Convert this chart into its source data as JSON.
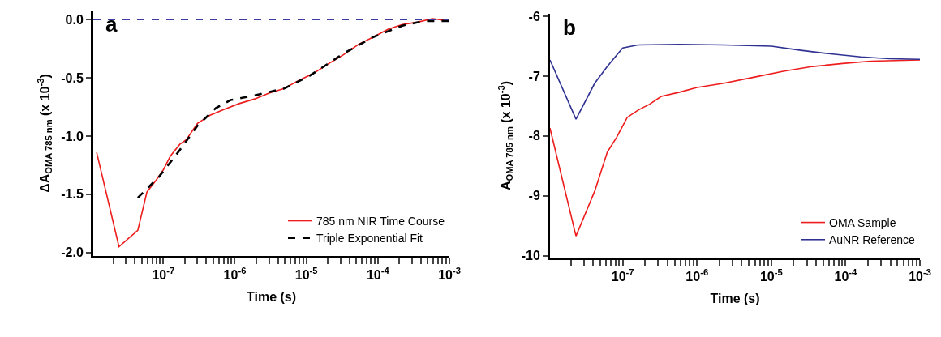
{
  "chart_data": [
    {
      "type": "line",
      "xlabel": "Time (s)",
      "ylabel": "ΔA$_{OMA 785 nm}$ (x 10$^{-3}$)",
      "annotations": [
        "a"
      ],
      "log": "x",
      "grid": false,
      "legend": "bottom right",
      "marker": "none",
      "xlim": [
        1.05e-08,
        0.001
      ],
      "ylim": [
        -2.03,
        0.08
      ],
      "xticks": [
        {
          "value": 2e-08,
          "label": null
        },
        {
          "value": 3e-08,
          "label": null
        },
        {
          "value": 4e-08,
          "label": null
        },
        {
          "value": 5e-08,
          "label": null
        },
        {
          "value": 6e-08,
          "label": null
        },
        {
          "value": 7e-08,
          "label": null
        },
        {
          "value": 8e-08,
          "label": null
        },
        {
          "value": 9e-08,
          "label": null
        },
        {
          "value": 1e-07,
          "label": "10$^{-7}$"
        },
        {
          "value": 2e-07,
          "label": null
        },
        {
          "value": 3e-07,
          "label": null
        },
        {
          "value": 4e-07,
          "label": null
        },
        {
          "value": 5e-07,
          "label": null
        },
        {
          "value": 6e-07,
          "label": null
        },
        {
          "value": 7e-07,
          "label": null
        },
        {
          "value": 8e-07,
          "label": null
        },
        {
          "value": 9e-07,
          "label": null
        },
        {
          "value": 1e-06,
          "label": "10$^{-6}$"
        },
        {
          "value": 2e-06,
          "label": null
        },
        {
          "value": 3e-06,
          "label": null
        },
        {
          "value": 4e-06,
          "label": null
        },
        {
          "value": 5e-06,
          "label": null
        },
        {
          "value": 6e-06,
          "label": null
        },
        {
          "value": 7e-06,
          "label": null
        },
        {
          "value": 8e-06,
          "label": null
        },
        {
          "value": 9e-06,
          "label": null
        },
        {
          "value": 1e-05,
          "label": "10$^{-5}$"
        },
        {
          "value": 2e-05,
          "label": null
        },
        {
          "value": 3e-05,
          "label": null
        },
        {
          "value": 4e-05,
          "label": null
        },
        {
          "value": 5e-05,
          "label": null
        },
        {
          "value": 6e-05,
          "label": null
        },
        {
          "value": 7e-05,
          "label": null
        },
        {
          "value": 8e-05,
          "label": null
        },
        {
          "value": 9e-05,
          "label": null
        },
        {
          "value": 0.0001,
          "label": "10$^{-4}$"
        },
        {
          "value": 0.0002,
          "label": null
        },
        {
          "value": 0.0003,
          "label": null
        },
        {
          "value": 0.0004,
          "label": null
        },
        {
          "value": 0.0005,
          "label": null
        },
        {
          "value": 0.0006,
          "label": null
        },
        {
          "value": 0.0007,
          "label": null
        },
        {
          "value": 0.0008,
          "label": null
        },
        {
          "value": 0.0009,
          "label": null
        },
        {
          "value": 0.001,
          "label": "10$^{-3}$"
        }
      ],
      "yticks": [
        {
          "value": 0,
          "label": "0.0"
        },
        -0.5,
        {
          "value": -1,
          "label": "-1.0"
        },
        -1.5,
        {
          "value": -2,
          "label": "-2.0"
        }
      ],
      "ref_lines": [
        {
          "axis": "y",
          "value": 0,
          "label": null,
          "color": "#3a3aa0",
          "line_style": "dashed"
        }
      ],
      "series": [
        {
          "name": "785 nm NIR Time Course",
          "color": "#ee1c1c",
          "line_style": "solid",
          "x": [
            1.17e-08,
            2.4e-08,
            4.4e-08,
            5.9e-08,
            7.9e-08,
            1e-07,
            1.26e-07,
            1.7e-07,
            2.1e-07,
            3e-07,
            4.5e-07,
            7.1e-07,
            1.15e-06,
            1.9e-06,
            3e-06,
            4.9e-06,
            7.9e-06,
            1.26e-05,
            2e-05,
            3.3e-05,
            5.4e-05,
            8.5e-05,
            0.00014,
            0.00022,
            0.00036,
            0.00058,
            0.001
          ],
          "values": [
            -1.14,
            -1.95,
            -1.81,
            -1.48,
            -1.38,
            -1.29,
            -1.17,
            -1.07,
            -1.03,
            -0.89,
            -0.82,
            -0.77,
            -0.72,
            -0.68,
            -0.63,
            -0.59,
            -0.52,
            -0.46,
            -0.38,
            -0.3,
            -0.21,
            -0.15,
            -0.08,
            -0.04,
            -0.02,
            0.01,
            -0.01
          ]
        },
        {
          "name": "Triple Exponential Fit",
          "color": "#000000",
          "line_style": "dashed",
          "x": [
            4.4e-08,
            8.7e-08,
            1.7e-07,
            3e-07,
            5.4e-07,
            8.7e-07,
            1.9e-06,
            4.9e-06,
            1.12e-05,
            3.3e-05,
            8.5e-05,
            0.00022,
            0.00044,
            0.001
          ],
          "values": [
            -1.53,
            -1.35,
            -1.12,
            -0.91,
            -0.76,
            -0.69,
            -0.65,
            -0.59,
            -0.48,
            -0.29,
            -0.15,
            -0.05,
            -0.01,
            -0.01
          ]
        }
      ]
    },
    {
      "type": "line",
      "xlabel": "Time (s)",
      "ylabel": "A$_{OMA 785 nm}$ (x 10$^{-3}$)",
      "annotations": [
        "b"
      ],
      "log": "x",
      "grid": false,
      "legend": "bottom right",
      "marker": "none",
      "xlim": [
        1.05e-08,
        0.001
      ],
      "ylim": [
        -10.03,
        -5.96
      ],
      "xticks": [
        {
          "value": 2e-08,
          "label": null
        },
        {
          "value": 3e-08,
          "label": null
        },
        {
          "value": 4e-08,
          "label": null
        },
        {
          "value": 5e-08,
          "label": null
        },
        {
          "value": 6e-08,
          "label": null
        },
        {
          "value": 7e-08,
          "label": null
        },
        {
          "value": 8e-08,
          "label": null
        },
        {
          "value": 9e-08,
          "label": null
        },
        {
          "value": 1e-07,
          "label": "10$^{-7}$"
        },
        {
          "value": 2e-07,
          "label": null
        },
        {
          "value": 3e-07,
          "label": null
        },
        {
          "value": 4e-07,
          "label": null
        },
        {
          "value": 5e-07,
          "label": null
        },
        {
          "value": 6e-07,
          "label": null
        },
        {
          "value": 7e-07,
          "label": null
        },
        {
          "value": 8e-07,
          "label": null
        },
        {
          "value": 9e-07,
          "label": null
        },
        {
          "value": 1e-06,
          "label": "10$^{-6}$"
        },
        {
          "value": 2e-06,
          "label": null
        },
        {
          "value": 3e-06,
          "label": null
        },
        {
          "value": 4e-06,
          "label": null
        },
        {
          "value": 5e-06,
          "label": null
        },
        {
          "value": 6e-06,
          "label": null
        },
        {
          "value": 7e-06,
          "label": null
        },
        {
          "value": 8e-06,
          "label": null
        },
        {
          "value": 9e-06,
          "label": null
        },
        {
          "value": 1e-05,
          "label": "10$^{-5}$"
        },
        {
          "value": 2e-05,
          "label": null
        },
        {
          "value": 3e-05,
          "label": null
        },
        {
          "value": 4e-05,
          "label": null
        },
        {
          "value": 5e-05,
          "label": null
        },
        {
          "value": 6e-05,
          "label": null
        },
        {
          "value": 7e-05,
          "label": null
        },
        {
          "value": 8e-05,
          "label": null
        },
        {
          "value": 9e-05,
          "label": null
        },
        {
          "value": 0.0001,
          "label": "10$^{-4}$"
        },
        {
          "value": 0.0002,
          "label": null
        },
        {
          "value": 0.0003,
          "label": null
        },
        {
          "value": 0.0004,
          "label": null
        },
        {
          "value": 0.0005,
          "label": null
        },
        {
          "value": 0.0006,
          "label": null
        },
        {
          "value": 0.0007,
          "label": null
        },
        {
          "value": 0.0008,
          "label": null
        },
        {
          "value": 0.0009,
          "label": null
        },
        {
          "value": 0.001,
          "label": "10$^{-3}$"
        }
      ],
      "yticks": [
        -6,
        -7,
        -8,
        -9,
        -10
      ],
      "series": [
        {
          "name": "OMA Sample",
          "color": "#ee1c1c",
          "x": [
            1.05e-08,
            2.35e-08,
            4.2e-08,
            6.2e-08,
            8.3e-08,
            1.15e-07,
            1.6e-07,
            2.3e-07,
            3.3e-07,
            5.8e-07,
            1e-06,
            2.3e-06,
            5.8e-06,
            1.45e-05,
            3.6e-05,
            9.1e-05,
            0.00022,
            0.001
          ],
          "values": [
            -7.87,
            -9.67,
            -8.92,
            -8.27,
            -8.02,
            -7.69,
            -7.57,
            -7.47,
            -7.34,
            -7.27,
            -7.19,
            -7.12,
            -7.02,
            -6.92,
            -6.84,
            -6.79,
            -6.75,
            -6.73
          ]
        },
        {
          "name": "AuNR Reference",
          "color": "#2e3192",
          "x": [
            1.05e-08,
            2.35e-08,
            4.2e-08,
            6.2e-08,
            1e-07,
            1.6e-07,
            5.8e-07,
            2.3e-06,
            1e-05,
            2.5e-05,
            6.3e-05,
            0.00016,
            0.00039,
            0.001
          ],
          "values": [
            -6.73,
            -7.72,
            -7.12,
            -6.84,
            -6.53,
            -6.48,
            -6.47,
            -6.48,
            -6.5,
            -6.57,
            -6.63,
            -6.68,
            -6.71,
            -6.72
          ]
        }
      ]
    }
  ]
}
